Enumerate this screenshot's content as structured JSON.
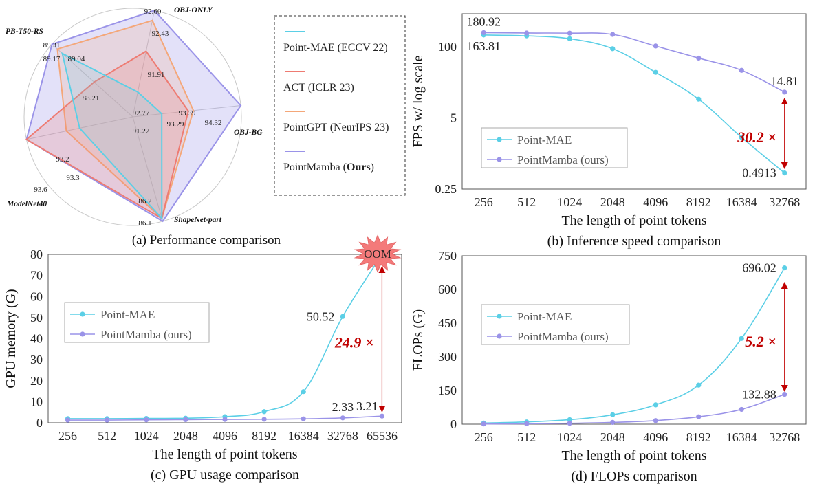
{
  "colors": {
    "mae": "#5bcfe6",
    "act": "#ee7b72",
    "gpt": "#f4a779",
    "mamba": "#9a93e8",
    "highlight": "#c00000",
    "grid": "#c8c8c8",
    "axis": "#555555",
    "oom": "#f47a7a"
  },
  "chart_data": [
    {
      "id": "a",
      "type": "radar",
      "caption": "(a) Performance comparison",
      "axes": [
        "OBJ-ONLY",
        "OBJ-BG",
        "ShapeNet-part",
        "ModelNet40",
        "PB-T50-RS"
      ],
      "axis_ranges": [
        [
          90.8,
          92.6
        ],
        [
          92.2,
          94.32
        ],
        [
          82.6,
          86.2
        ],
        [
          92.8,
          93.6
        ],
        [
          87.2,
          89.31
        ]
      ],
      "series": [
        {
          "name": "Point-MAE (ECCV 22)",
          "key": "mae",
          "values": [
            91.22,
            92.77,
            86.1,
            93.2,
            89.04
          ],
          "labels": [
            "91.22",
            "92.77",
            "86.1",
            "93.2",
            "89.04"
          ]
        },
        {
          "name": "ACT (ICLR 23)",
          "key": "act",
          "values": [
            91.91,
            93.29,
            86.1,
            93.6,
            88.21
          ],
          "labels": [
            "91.91",
            "93.29",
            "",
            "",
            "88.21"
          ]
        },
        {
          "name": "PointGPT (NeurIPS 23)",
          "key": "gpt",
          "values": [
            92.43,
            93.39,
            86.1,
            93.3,
            89.17
          ],
          "labels": [
            "92.43",
            "93.39",
            "",
            "93.3",
            "89.17"
          ]
        },
        {
          "name": "PointMamba (Ours)",
          "key": "mamba",
          "values": [
            92.6,
            94.32,
            86.2,
            93.6,
            89.31
          ],
          "labels": [
            "92.60",
            "94.32",
            "86.2",
            "93.6",
            "89.31"
          ]
        }
      ],
      "legend": [
        {
          "key": "mae",
          "label": "Point-MAE (ECCV 22)"
        },
        {
          "key": "act",
          "label": "ACT (ICLR 23)"
        },
        {
          "key": "gpt",
          "label": "PointGPT (NeurIPS 23)"
        },
        {
          "key": "mamba",
          "label_pre": "PointMamba (",
          "label_bold": "Ours",
          "label_post": ")"
        }
      ]
    },
    {
      "id": "b",
      "type": "line",
      "caption": "(b) Inference speed comparison",
      "xlabel": "The length of point tokens",
      "ylabel": "FPS w/ log scale",
      "yscale": "log",
      "ylim": [
        0.25,
        400
      ],
      "yticks": [
        0.25,
        5,
        100
      ],
      "ytick_labels": [
        "0.25",
        "5",
        "100"
      ],
      "categories": [
        "256",
        "512",
        "1024",
        "2048",
        "4096",
        "8192",
        "16384",
        "32768"
      ],
      "series": [
        {
          "name": "Point-MAE",
          "key": "mae",
          "values": [
            163.81,
            158,
            140,
            92,
            34,
            11,
            2.2,
            0.4913
          ]
        },
        {
          "name": "PointMamba (ours)",
          "key": "mamba",
          "values": [
            180.92,
            178,
            177,
            168,
            103,
            62,
            37,
            14.81
          ]
        }
      ],
      "data_labels": [
        {
          "series": 1,
          "index": 0,
          "text": "180.92",
          "pos": "above"
        },
        {
          "series": 0,
          "index": 0,
          "text": "163.81",
          "pos": "below"
        },
        {
          "series": 1,
          "index": 7,
          "text": "14.81",
          "pos": "above"
        },
        {
          "series": 0,
          "index": 7,
          "text": "0.4913",
          "pos": "left"
        }
      ],
      "annotation": {
        "text": "30.2 ×",
        "index": 7
      },
      "legend_position": "lower-left"
    },
    {
      "id": "c",
      "type": "line",
      "caption": "(c) GPU usage comparison",
      "xlabel": "The length of point tokens",
      "ylabel": "GPU memory (G)",
      "ylim": [
        0,
        80
      ],
      "yticks": [
        0,
        10,
        20,
        30,
        40,
        50,
        60,
        70,
        80
      ],
      "categories": [
        "256",
        "512",
        "1024",
        "2048",
        "4096",
        "8192",
        "16384",
        "32768",
        "65536"
      ],
      "series": [
        {
          "name": "Point-MAE",
          "key": "mae",
          "values": [
            2.0,
            2.0,
            2.1,
            2.2,
            2.9,
            5.3,
            14.8,
            50.52,
            80
          ]
        },
        {
          "name": "PointMamba (ours)",
          "key": "mamba",
          "values": [
            1.3,
            1.3,
            1.4,
            1.5,
            1.6,
            1.7,
            1.9,
            2.33,
            3.21
          ]
        }
      ],
      "data_labels": [
        {
          "series": 0,
          "index": 7,
          "text": "50.52",
          "pos": "left"
        },
        {
          "series": 1,
          "index": 7,
          "text": "2.33",
          "pos": "above"
        },
        {
          "series": 1,
          "index": 8,
          "text": "3.21",
          "pos": "above-left"
        }
      ],
      "oom_label": "OOM",
      "annotation": {
        "text": "24.9 ×",
        "index": 8
      },
      "legend_position": "middle-left"
    },
    {
      "id": "d",
      "type": "line",
      "caption": "(d) FLOPs comparison",
      "xlabel": "The length of point tokens",
      "ylabel": "FLOPs (G)",
      "ylim": [
        0,
        750
      ],
      "yticks": [
        0,
        150,
        300,
        450,
        600,
        750
      ],
      "categories": [
        "256",
        "512",
        "1024",
        "2048",
        "4096",
        "8192",
        "16384",
        "32768"
      ],
      "series": [
        {
          "name": "Point-MAE",
          "key": "mae",
          "values": [
            5,
            10,
            20,
            42,
            86,
            174,
            382,
            696.02
          ]
        },
        {
          "name": "PointMamba (ours)",
          "key": "mamba",
          "values": [
            1,
            2,
            4,
            8,
            16,
            33,
            66,
            132.88
          ]
        }
      ],
      "data_labels": [
        {
          "series": 0,
          "index": 7,
          "text": "696.02",
          "pos": "left"
        },
        {
          "series": 1,
          "index": 7,
          "text": "132.88",
          "pos": "left"
        }
      ],
      "annotation": {
        "text": "5.2 ×",
        "index": 7
      },
      "legend_position": "middle-left"
    }
  ]
}
